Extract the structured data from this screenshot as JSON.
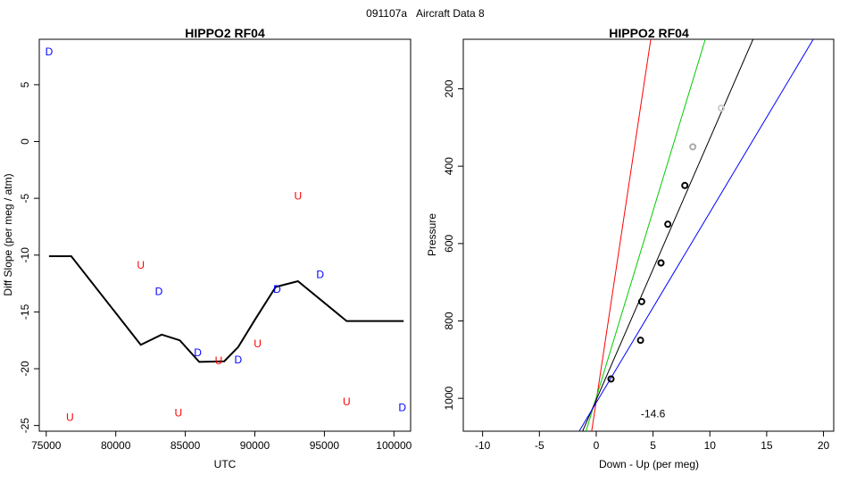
{
  "page": {
    "header_id": "091107a",
    "header_title": "Aircraft Data 8"
  },
  "chart_data": [
    {
      "type": "line",
      "title": "HIPPO2 RF04",
      "xlabel": "UTC",
      "ylabel": "Diff Slope (per meg / atm)",
      "xlim": [
        74500,
        101200
      ],
      "ylim": [
        -25.5,
        9.0
      ],
      "xticks": [
        75000,
        80000,
        85000,
        90000,
        95000,
        100000
      ],
      "yticks": [
        -25,
        -20,
        -15,
        -10,
        -5,
        0,
        5
      ],
      "grid": false,
      "line_color": "#000000",
      "series": [
        {
          "x": [
            75200,
            76800,
            81800,
            83300,
            84600,
            86000,
            87800,
            88800,
            90000,
            91500,
            93100,
            96600,
            100700
          ],
          "y": [
            -10.1,
            -10.1,
            -17.9,
            -17.0,
            -17.5,
            -19.4,
            -19.35,
            -18.1,
            -15.7,
            -12.8,
            -12.3,
            -15.8,
            -15.8
          ]
        }
      ],
      "markers": [
        {
          "label": "D",
          "color": "#0000ff",
          "x": 75200,
          "y": 7.9
        },
        {
          "label": "U",
          "color": "#ff0000",
          "x": 76700,
          "y": -24.3
        },
        {
          "label": "U",
          "color": "#ff0000",
          "x": 81800,
          "y": -10.9
        },
        {
          "label": "D",
          "color": "#0000ff",
          "x": 83100,
          "y": -13.2
        },
        {
          "label": "U",
          "color": "#ff0000",
          "x": 84500,
          "y": -23.9
        },
        {
          "label": "D",
          "color": "#0000ff",
          "x": 85900,
          "y": -18.6
        },
        {
          "label": "U",
          "color": "#ff0000",
          "x": 87400,
          "y": -19.3
        },
        {
          "label": "D",
          "color": "#0000ff",
          "x": 88800,
          "y": -19.2
        },
        {
          "label": "U",
          "color": "#ff0000",
          "x": 90200,
          "y": -17.8
        },
        {
          "label": "D",
          "color": "#0000ff",
          "x": 91600,
          "y": -13.0
        },
        {
          "label": "U",
          "color": "#ff0000",
          "x": 93100,
          "y": -4.8
        },
        {
          "label": "D",
          "color": "#0000ff",
          "x": 94700,
          "y": -11.7
        },
        {
          "label": "U",
          "color": "#ff0000",
          "x": 96600,
          "y": -22.9
        },
        {
          "label": "D",
          "color": "#0000ff",
          "x": 100600,
          "y": -23.4
        }
      ]
    },
    {
      "type": "scatter",
      "title": "HIPPO2 RF04",
      "xlabel": "Down - Up (per meg)",
      "ylabel": "Pressure",
      "xlim": [
        -11.7,
        20.9
      ],
      "ylim": [
        1085,
        72
      ],
      "y_reversed": true,
      "xticks": [
        -10,
        -5,
        0,
        5,
        10,
        15,
        20
      ],
      "yticks": [
        200,
        400,
        600,
        800,
        1000
      ],
      "grid": false,
      "annotation": "-14.6",
      "annotation_pos": {
        "x": 5.0,
        "y": 1040
      },
      "points": [
        {
          "x": 1.3,
          "y": 950,
          "color": "#000000"
        },
        {
          "x": 4.0,
          "y": 750,
          "color": "#000000"
        },
        {
          "x": 3.9,
          "y": 850,
          "color": "#000000"
        },
        {
          "x": 5.7,
          "y": 650,
          "color": "#000000"
        },
        {
          "x": 6.3,
          "y": 550,
          "color": "#000000"
        },
        {
          "x": 7.8,
          "y": 450,
          "color": "#000000"
        },
        {
          "x": 8.5,
          "y": 350,
          "color": "#aaaaaa"
        },
        {
          "x": 11.0,
          "y": 250,
          "color": "#cccccc"
        }
      ],
      "lines": [
        {
          "color": "#ff0000",
          "points": [
            [
              -0.4,
              1085
            ],
            [
              4.8,
              72
            ]
          ]
        },
        {
          "color": "#00cc00",
          "points": [
            [
              -0.9,
              1085
            ],
            [
              9.6,
              72
            ]
          ]
        },
        {
          "color": "#000000",
          "points": [
            [
              -1.2,
              1085
            ],
            [
              13.8,
              72
            ]
          ]
        },
        {
          "color": "#0000ff",
          "points": [
            [
              -1.5,
              1085
            ],
            [
              19.1,
              72
            ]
          ]
        }
      ]
    }
  ]
}
